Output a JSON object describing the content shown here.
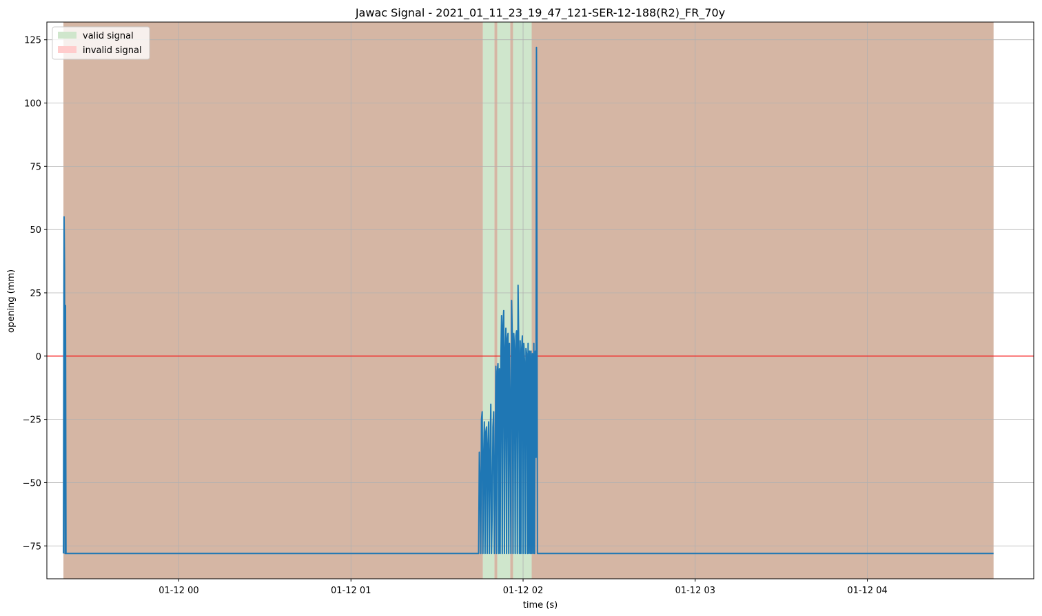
{
  "chart_data": {
    "type": "line",
    "title": "Jawac Signal - 2021_01_11_23_19_47_121-SER-12-188(R2)_FR_70y",
    "xlabel": "time (s)",
    "ylabel": "opening (mm)",
    "grid": true,
    "xlim": [
      "2021-01-11 23:14",
      "2021-01-12 04:58"
    ],
    "ylim": [
      -88,
      132
    ],
    "x_ticks": [
      "2021-01-12 00:00",
      "2021-01-12 01:00",
      "2021-01-12 02:00",
      "2021-01-12 03:00",
      "2021-01-12 04:00"
    ],
    "x_tick_labels": [
      "01-12 00",
      "01-12 01",
      "01-12 02",
      "01-12 03",
      "01-12 04"
    ],
    "y_ticks": [
      -75,
      -50,
      -25,
      0,
      25,
      50,
      75,
      100,
      125
    ],
    "y_tick_labels": [
      "−75",
      "−50",
      "−25",
      "0",
      "25",
      "50",
      "75",
      "100",
      "125"
    ],
    "legend": {
      "position": "top-left",
      "entries": [
        {
          "label": "valid signal",
          "color": "#cfe6cc"
        },
        {
          "label": "invalid signal",
          "color": "#ffcccc"
        }
      ]
    },
    "reference_line": {
      "y": 0,
      "color": "#ff0000"
    },
    "invalid_regions": [
      {
        "start": "2021-01-11 23:19:47",
        "end": "2021-01-12 01:46:00"
      },
      {
        "start": "2021-01-12 01:50:00",
        "end": "2021-01-12 01:51:00"
      },
      {
        "start": "2021-01-12 01:55:30",
        "end": "2021-01-12 01:56:30"
      },
      {
        "start": "2021-01-12 02:03:00",
        "end": "2021-01-12 04:44:00"
      }
    ],
    "valid_regions": [
      {
        "start": "2021-01-12 01:46:00",
        "end": "2021-01-12 01:50:00"
      },
      {
        "start": "2021-01-12 01:51:00",
        "end": "2021-01-12 01:55:30"
      },
      {
        "start": "2021-01-12 01:56:30",
        "end": "2021-01-12 02:03:00"
      }
    ],
    "series": [
      {
        "color": "#1f77b4",
        "x": [
          "2021-01-11 23:19:47",
          "2021-01-11 23:20:00",
          "2021-01-11 23:20:10",
          "2021-01-11 23:20:20",
          "2021-01-11 23:20:30",
          "2021-01-11 23:20:40",
          "2021-01-11 23:20:50",
          "2021-01-12 01:44:30",
          "2021-01-12 01:44:45",
          "2021-01-12 01:45:00",
          "2021-01-12 01:45:15",
          "2021-01-12 01:45:30",
          "2021-01-12 01:45:45",
          "2021-01-12 01:46:00",
          "2021-01-12 01:46:15",
          "2021-01-12 01:46:30",
          "2021-01-12 01:46:45",
          "2021-01-12 01:47:00",
          "2021-01-12 01:47:15",
          "2021-01-12 01:47:30",
          "2021-01-12 01:47:45",
          "2021-01-12 01:48:00",
          "2021-01-12 01:48:15",
          "2021-01-12 01:48:30",
          "2021-01-12 01:48:45",
          "2021-01-12 01:49:00",
          "2021-01-12 01:49:15",
          "2021-01-12 01:49:30",
          "2021-01-12 01:49:45",
          "2021-01-12 01:50:00",
          "2021-01-12 01:50:15",
          "2021-01-12 01:50:30",
          "2021-01-12 01:50:45",
          "2021-01-12 01:51:00",
          "2021-01-12 01:51:15",
          "2021-01-12 01:51:30",
          "2021-01-12 01:51:45",
          "2021-01-12 01:52:00",
          "2021-01-12 01:52:15",
          "2021-01-12 01:52:30",
          "2021-01-12 01:52:45",
          "2021-01-12 01:53:00",
          "2021-01-12 01:53:15",
          "2021-01-12 01:53:30",
          "2021-01-12 01:53:45",
          "2021-01-12 01:54:00",
          "2021-01-12 01:54:15",
          "2021-01-12 01:54:30",
          "2021-01-12 01:54:45",
          "2021-01-12 01:55:00",
          "2021-01-12 01:55:15",
          "2021-01-12 01:55:30",
          "2021-01-12 01:55:45",
          "2021-01-12 01:56:00",
          "2021-01-12 01:56:15",
          "2021-01-12 01:56:30",
          "2021-01-12 01:56:45",
          "2021-01-12 01:57:00",
          "2021-01-12 01:57:15",
          "2021-01-12 01:57:30",
          "2021-01-12 01:57:45",
          "2021-01-12 01:58:00",
          "2021-01-12 01:58:15",
          "2021-01-12 01:58:30",
          "2021-01-12 01:58:45",
          "2021-01-12 01:59:00",
          "2021-01-12 01:59:15",
          "2021-01-12 01:59:30",
          "2021-01-12 01:59:45",
          "2021-01-12 02:00:00",
          "2021-01-12 02:00:15",
          "2021-01-12 02:00:30",
          "2021-01-12 02:00:45",
          "2021-01-12 02:01:00",
          "2021-01-12 02:01:15",
          "2021-01-12 02:01:30",
          "2021-01-12 02:01:45",
          "2021-01-12 02:02:00",
          "2021-01-12 02:02:15",
          "2021-01-12 02:02:30",
          "2021-01-12 02:02:45",
          "2021-01-12 02:03:00",
          "2021-01-12 02:03:15",
          "2021-01-12 02:03:30",
          "2021-01-12 02:03:45",
          "2021-01-12 02:04:00",
          "2021-01-12 02:04:15",
          "2021-01-12 02:04:30",
          "2021-01-12 02:04:40",
          "2021-01-12 02:04:50",
          "2021-01-12 02:05:00",
          "2021-01-12 04:44:00"
        ],
        "y": [
          -78,
          55,
          35,
          -78,
          20,
          -78,
          -78,
          -78,
          -38,
          -50,
          -78,
          -25,
          -22,
          -78,
          -40,
          -26,
          -78,
          -30,
          -28,
          -78,
          -35,
          -26,
          -78,
          -40,
          -19,
          -78,
          -60,
          -28,
          -22,
          -78,
          -50,
          -4,
          -78,
          -6,
          -3,
          -78,
          -5,
          -78,
          -2,
          16,
          -78,
          12,
          18,
          -78,
          3,
          11,
          -78,
          7,
          9,
          -78,
          5,
          -20,
          -78,
          22,
          7,
          -78,
          9,
          3,
          -78,
          8,
          10,
          -78,
          28,
          2,
          -78,
          6,
          -78,
          3,
          8,
          -78,
          5,
          -2,
          -78,
          3,
          1,
          -78,
          5,
          -78,
          2,
          -78,
          2,
          -78,
          1,
          -78,
          5,
          -78,
          2,
          -40,
          122,
          37,
          -78,
          -78
        ]
      }
    ]
  }
}
